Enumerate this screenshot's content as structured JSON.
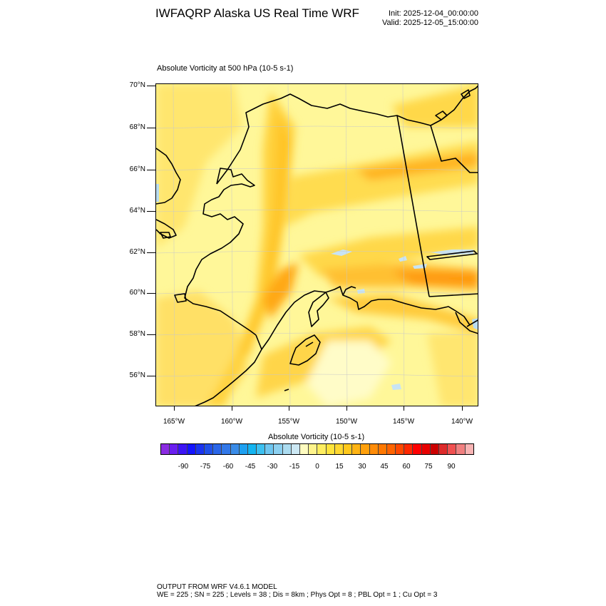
{
  "header": {
    "title": "IWFAQRP Alaska US Real Time WRF",
    "init": "Init: 2025-12-04_00:00:00",
    "valid": "Valid: 2025-12-05_15:00:00"
  },
  "field_title": "Absolute Vorticity at 500 hPa   (10-5 s-1)",
  "map": {
    "lat_labels": [
      "70°N",
      "68°N",
      "66°N",
      "64°N",
      "62°N",
      "60°N",
      "58°N",
      "56°N"
    ],
    "lon_labels": [
      "165°W",
      "160°W",
      "155°W",
      "150°W",
      "145°W",
      "140°W"
    ],
    "background_color": "#fff799",
    "coastline_color": "#000000"
  },
  "colorbar": {
    "title": "Absolute Vorticity  (10-5 s-1)",
    "tick_labels": [
      "-90",
      "-75",
      "-60",
      "-45",
      "-30",
      "-15",
      "0",
      "15",
      "30",
      "45",
      "60",
      "75",
      "90"
    ],
    "colors": [
      "#8a2be2",
      "#6a1ef0",
      "#3c14f5",
      "#1414ff",
      "#1a34f0",
      "#2050e8",
      "#2a66e8",
      "#3278e8",
      "#3a8ce8",
      "#1ea0f0",
      "#14b4f0",
      "#3cc0f0",
      "#6ec6f0",
      "#8cd0f0",
      "#acdcf0",
      "#cce8f4",
      "#fffcc0",
      "#fff48c",
      "#ffee60",
      "#ffe43c",
      "#ffd830",
      "#ffc81c",
      "#ffb414",
      "#ffa00c",
      "#ff8c08",
      "#ff7800",
      "#ff6400",
      "#ff4800",
      "#ff2800",
      "#ff0000",
      "#e80000",
      "#cc0000",
      "#dd2a2a",
      "#f05050",
      "#f08080",
      "#f8b4b4"
    ]
  },
  "footer": {
    "line1": "OUTPUT FROM WRF V4.6.1 MODEL",
    "line2": "WE = 225 ; SN = 225 ; Levels = 38 ; Dis = 8km ; Phys Opt = 8 ; PBL Opt = 1 ; Cu Opt = 3"
  }
}
